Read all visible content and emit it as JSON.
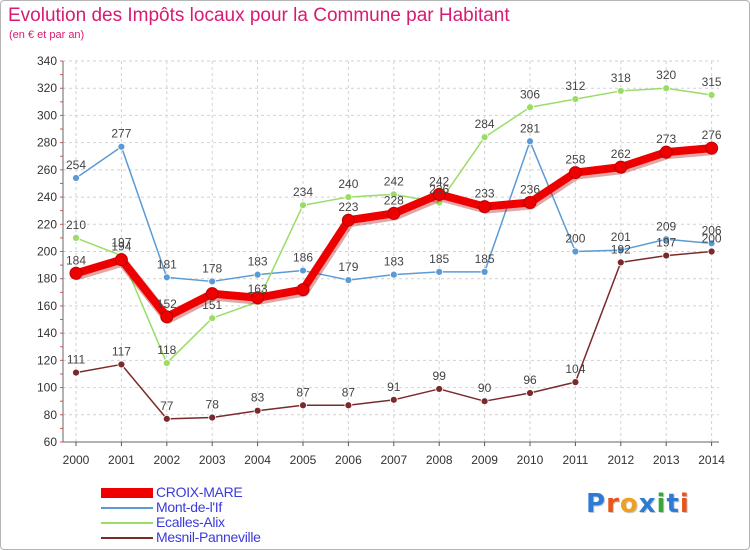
{
  "title": "Evolution des Impôts locaux pour la Commune par Habitant",
  "subtitle": "(en € et par an)",
  "logo": {
    "text": "Proxiti",
    "colors": [
      "#2e7bd6",
      "#e8551c",
      "#f0a020",
      "#2e7bd6",
      "#3aa63a",
      "#2e7bd6",
      "#e8551c"
    ]
  },
  "chart_data": {
    "type": "line",
    "title": "Evolution des Impôts locaux pour la Commune par Habitant",
    "subtitle": "(en € et par an)",
    "xlabel": "",
    "ylabel": "",
    "x": [
      "2000",
      "2001",
      "2002",
      "2003",
      "2004",
      "2005",
      "2006",
      "2007",
      "2008",
      "2009",
      "2010",
      "2011",
      "2012",
      "2013",
      "2014"
    ],
    "ylim": [
      60,
      340
    ],
    "yticks": [
      60,
      80,
      100,
      120,
      140,
      160,
      180,
      200,
      220,
      240,
      260,
      280,
      300,
      320,
      340
    ],
    "grid": true,
    "legend_position": "bottom-left",
    "series": [
      {
        "name": "CROIX-MARE",
        "color": "#ee0000",
        "highlight": true,
        "values": [
          184,
          194,
          152,
          169,
          166,
          172,
          223,
          228,
          242,
          233,
          236,
          258,
          262,
          273,
          276
        ],
        "labels": [
          "184",
          "194",
          "152",
          "",
          "",
          "",
          "223",
          "228",
          "242",
          "233",
          "236",
          "258",
          "262",
          "273",
          "276"
        ]
      },
      {
        "name": "Mont-de-l'If",
        "color": "#5b9bd5",
        "highlight": false,
        "values": [
          254,
          277,
          181,
          178,
          183,
          186,
          179,
          183,
          185,
          185,
          281,
          200,
          201,
          209,
          206
        ],
        "labels": [
          "254",
          "277",
          "181",
          "178",
          "183",
          "186",
          "179",
          "183",
          "185",
          "185",
          "281",
          "200",
          "201",
          "209",
          "206"
        ]
      },
      {
        "name": "Ecalles-Alix",
        "color": "#99dd66",
        "highlight": false,
        "values": [
          210,
          197,
          118,
          151,
          163,
          234,
          240,
          242,
          236,
          284,
          306,
          312,
          318,
          320,
          315
        ],
        "labels": [
          "210",
          "197",
          "118",
          "151",
          "163",
          "234",
          "240",
          "242",
          "236",
          "284",
          "306",
          "312",
          "318",
          "320",
          "315"
        ]
      },
      {
        "name": "Mesnil-Panneville",
        "color": "#7a2a2a",
        "highlight": false,
        "values": [
          111,
          117,
          77,
          78,
          83,
          87,
          87,
          91,
          99,
          90,
          96,
          104,
          192,
          197,
          200
        ],
        "labels": [
          "111",
          "117",
          "77",
          "78",
          "83",
          "87",
          "87",
          "91",
          "99",
          "90",
          "96",
          "104",
          "192",
          "197",
          "200"
        ]
      }
    ]
  }
}
